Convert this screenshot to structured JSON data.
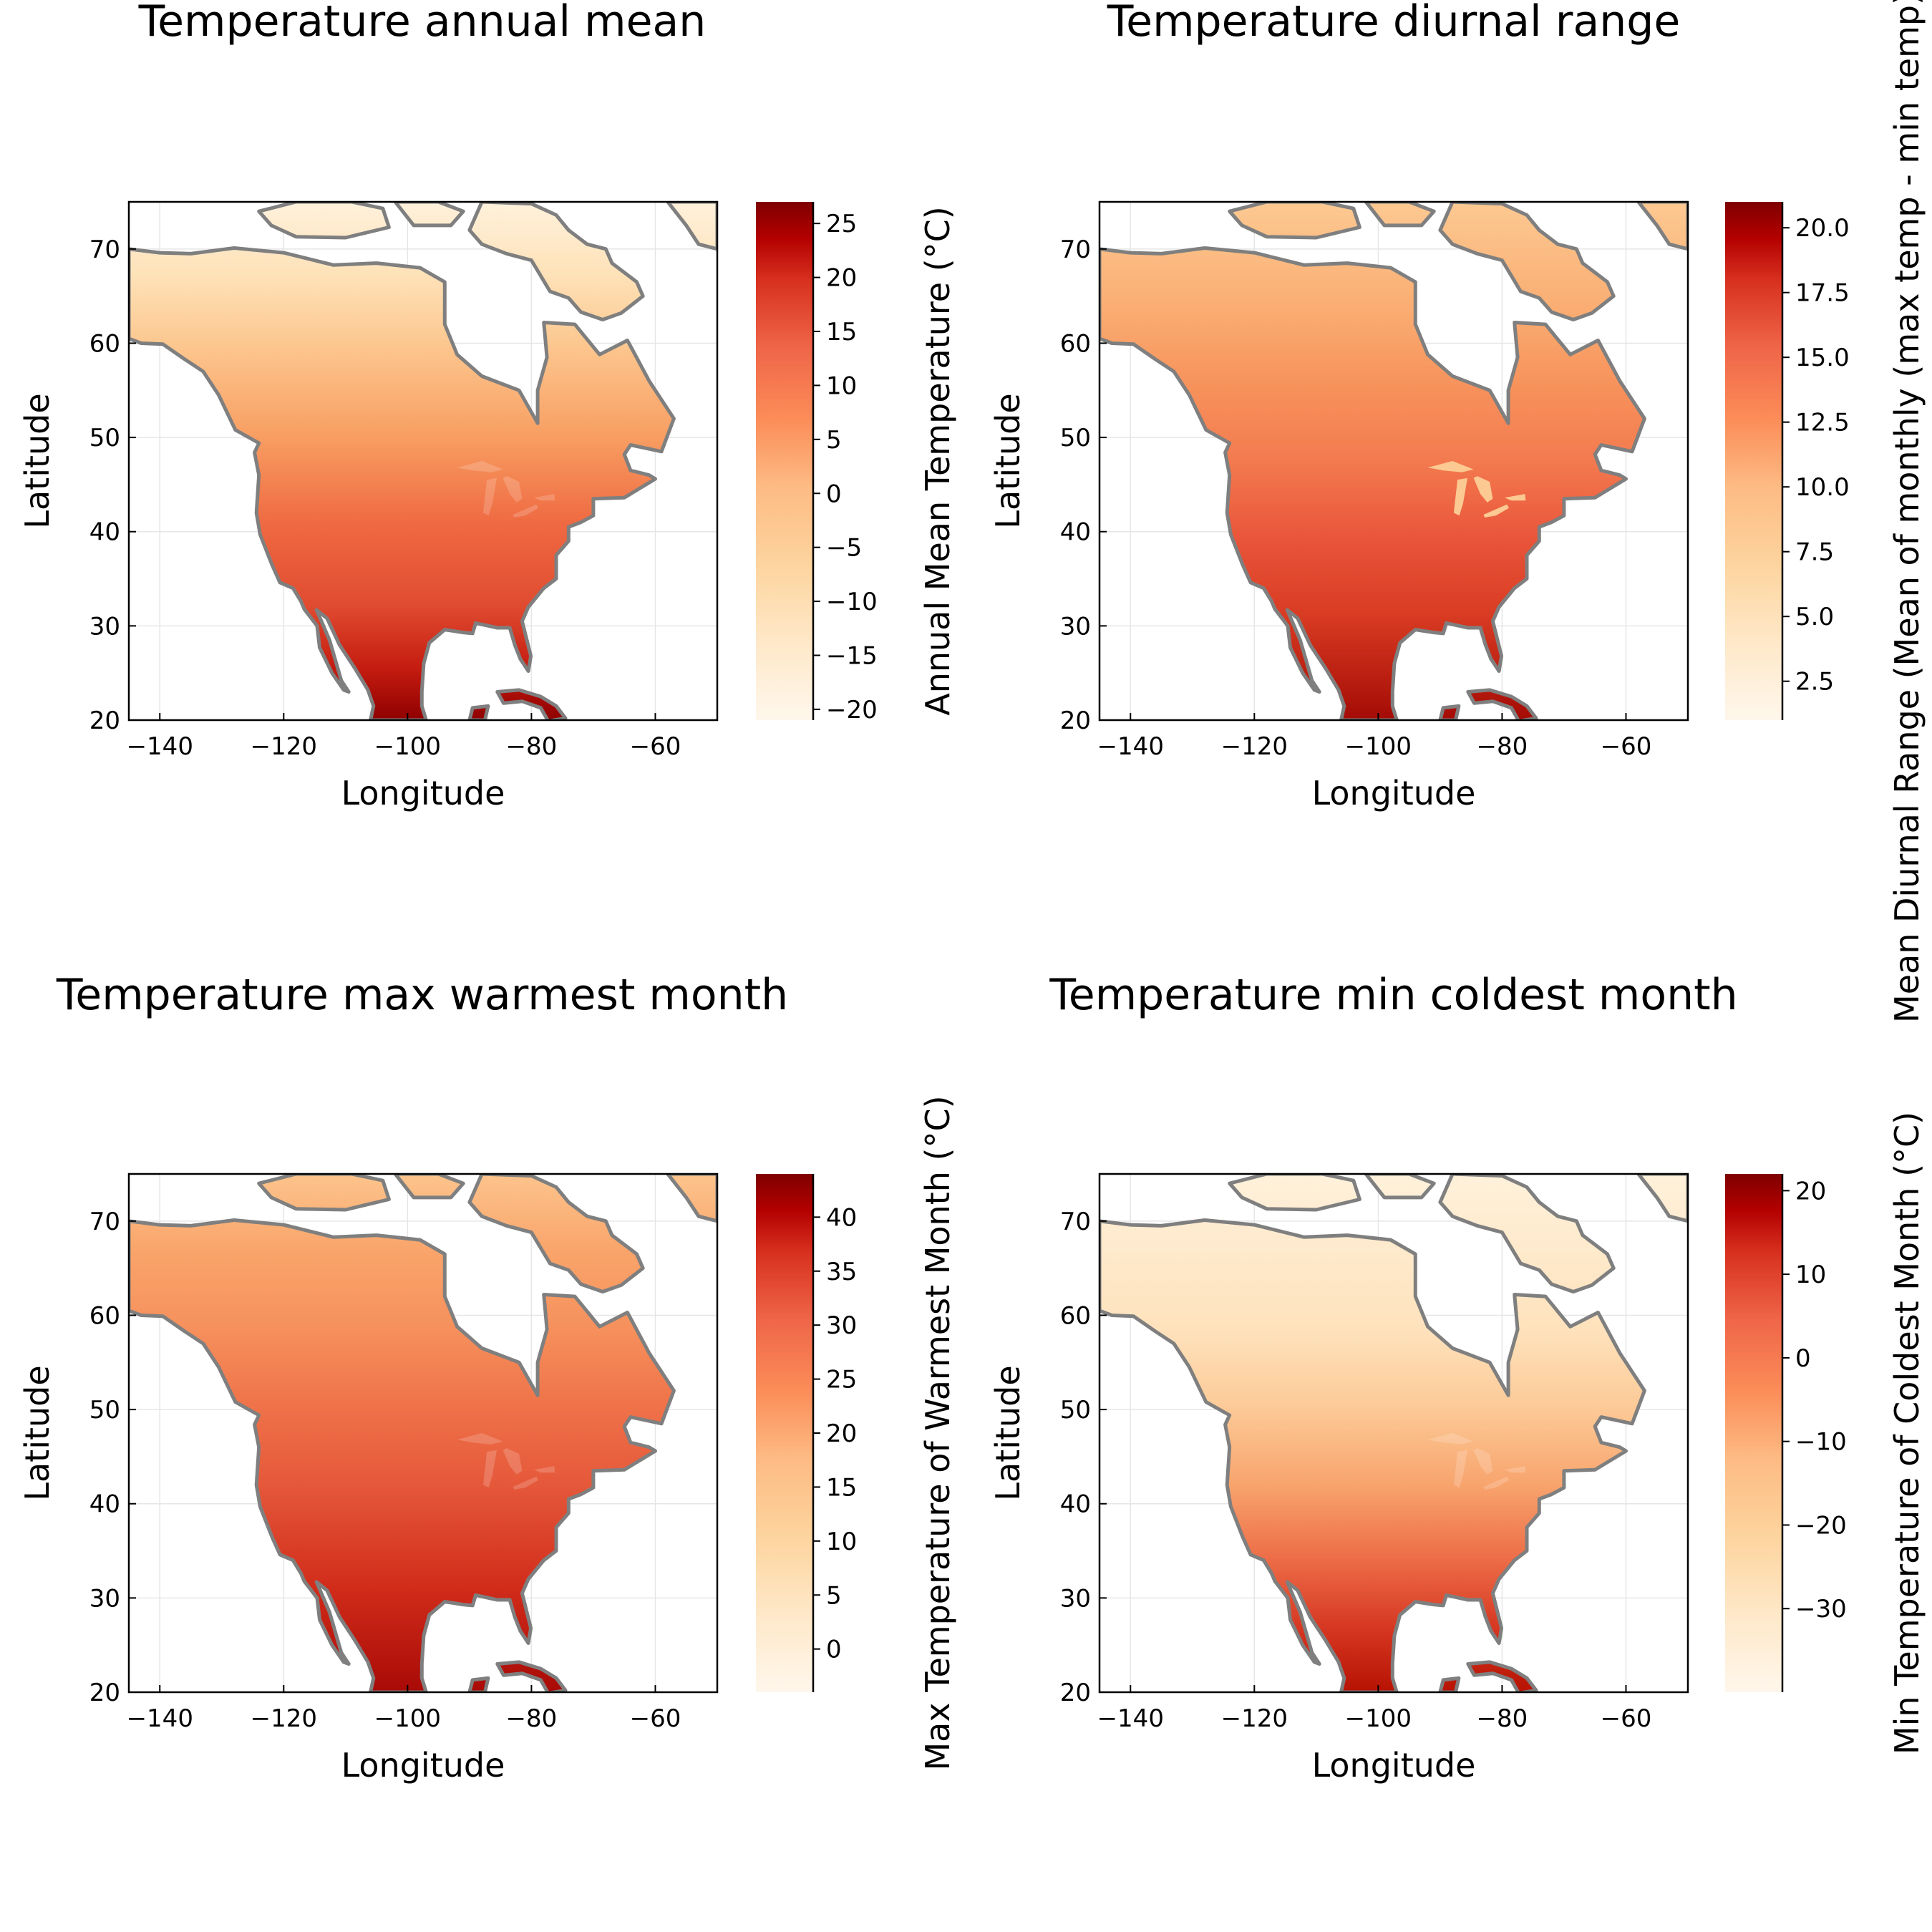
{
  "chart_data": [
    {
      "type": "heatmap",
      "title": "Temperature annual mean",
      "xlabel": "Longitude",
      "ylabel": "Latitude",
      "xlim": [
        -145,
        -50
      ],
      "ylim": [
        20,
        75
      ],
      "xticks": [
        -140,
        -120,
        -100,
        -80,
        -60
      ],
      "yticks": [
        20,
        30,
        40,
        50,
        60,
        70
      ],
      "colorbar": {
        "label": "Annual Mean Temperature (°C)",
        "range": [
          -21,
          27
        ],
        "ticks": [
          "25",
          "20",
          "15",
          "10",
          "5",
          "0",
          "−5",
          "−10",
          "−15",
          "−20"
        ],
        "tick_values": [
          25,
          20,
          15,
          10,
          5,
          0,
          -5,
          -10,
          -15,
          -20
        ]
      },
      "colormap": "OrRd",
      "values": {
        "north": -18,
        "south": 26,
        "west_mountains": 8,
        "southeast": 22
      }
    },
    {
      "type": "heatmap",
      "title": "Temperature diurnal range",
      "xlabel": "Longitude",
      "ylabel": "Latitude",
      "xlim": [
        -145,
        -50
      ],
      "ylim": [
        20,
        75
      ],
      "xticks": [
        -140,
        -120,
        -100,
        -80,
        -60
      ],
      "yticks": [
        20,
        30,
        40,
        50,
        60,
        70
      ],
      "colorbar": {
        "label": "Mean Diurnal Range (Mean of monthly (max temp - min temp))",
        "range": [
          1,
          21
        ],
        "ticks": [
          "20.0",
          "17.5",
          "15.0",
          "12.5",
          "10.0",
          "7.5",
          "5.0",
          "2.5"
        ],
        "tick_values": [
          20,
          17.5,
          15,
          12.5,
          10,
          7.5,
          5,
          2.5
        ]
      },
      "colormap": "OrRd",
      "values": {
        "north": 7,
        "south": 15,
        "west_interior": 19,
        "southeast": 12
      }
    },
    {
      "type": "heatmap",
      "title": "Temperature max warmest month",
      "xlabel": "Longitude",
      "ylabel": "Latitude",
      "xlim": [
        -145,
        -50
      ],
      "ylim": [
        20,
        75
      ],
      "xticks": [
        -140,
        -120,
        -100,
        -80,
        -60
      ],
      "yticks": [
        20,
        30,
        40,
        50,
        60,
        70
      ],
      "colorbar": {
        "label": "Max Temperature of Warmest Month (°C)",
        "range": [
          -4,
          44
        ],
        "ticks": [
          "40",
          "35",
          "30",
          "25",
          "20",
          "15",
          "10",
          "5",
          "0"
        ],
        "tick_values": [
          40,
          35,
          30,
          25,
          20,
          15,
          10,
          5,
          0
        ]
      },
      "colormap": "OrRd",
      "values": {
        "north": 12,
        "south": 36,
        "southwest_desert": 42,
        "southeast": 33
      }
    },
    {
      "type": "heatmap",
      "title": "Temperature min coldest month",
      "xlabel": "Longitude",
      "ylabel": "Latitude",
      "xlim": [
        -145,
        -50
      ],
      "ylim": [
        20,
        75
      ],
      "xticks": [
        -140,
        -120,
        -100,
        -80,
        -60
      ],
      "yticks": [
        20,
        30,
        40,
        50,
        60,
        70
      ],
      "colorbar": {
        "label": "Min Temperature of Coldest Month (°C)",
        "range": [
          -40,
          22
        ],
        "ticks": [
          "20",
          "10",
          "0",
          "−10",
          "−20",
          "−30"
        ],
        "tick_values": [
          20,
          10,
          0,
          -10,
          -20,
          -30
        ]
      },
      "colormap": "OrRd",
      "values": {
        "north": -36,
        "south": 12,
        "southeast": 5,
        "west_coast": -2
      }
    }
  ]
}
